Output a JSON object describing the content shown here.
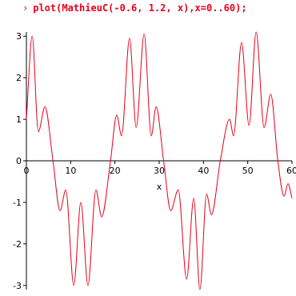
{
  "input": {
    "prompt": "›",
    "command": "plot(MathieuC(-0.6, 1.2, x),x=0..60);"
  },
  "chart_data": {
    "type": "line",
    "x_label": "x",
    "xlim": [
      0,
      60
    ],
    "xticks": [
      0,
      10,
      20,
      30,
      40,
      50,
      60
    ],
    "ylim": [
      -3.1,
      3.1
    ],
    "yticks": [
      -3,
      -2,
      -1,
      0,
      1,
      2,
      3
    ],
    "series": [
      {
        "color": "#e8001c",
        "x": [
          0,
          1.3,
          2.7,
          4.2,
          6,
          7.6,
          8.9,
          10.7,
          12.3,
          13.9,
          15.7,
          17,
          19,
          20.4,
          21.5,
          23.3,
          24.8,
          26.6,
          28.2,
          29.3,
          31,
          32.6,
          34.3,
          36.2,
          37.8,
          39.2,
          40.7,
          41.8,
          43.8,
          45.9,
          46.8,
          48.6,
          50.3,
          51.9,
          53.7,
          55.2,
          56.8,
          58.2,
          59.1,
          60
        ],
        "values": [
          1,
          3,
          0.7,
          1.3,
          0,
          -1.2,
          -0.7,
          -3,
          -1,
          -3,
          -0.7,
          -1.35,
          0,
          1.1,
          0.6,
          2.95,
          0.8,
          3.05,
          0.6,
          1.3,
          0,
          -1.2,
          -0.7,
          -2.85,
          -0.9,
          -3.1,
          -0.8,
          -1.3,
          0,
          1.0,
          0.6,
          2.85,
          0.85,
          3.1,
          0.8,
          1.6,
          0,
          -0.85,
          -0.55,
          -0.9
        ]
      }
    ]
  }
}
